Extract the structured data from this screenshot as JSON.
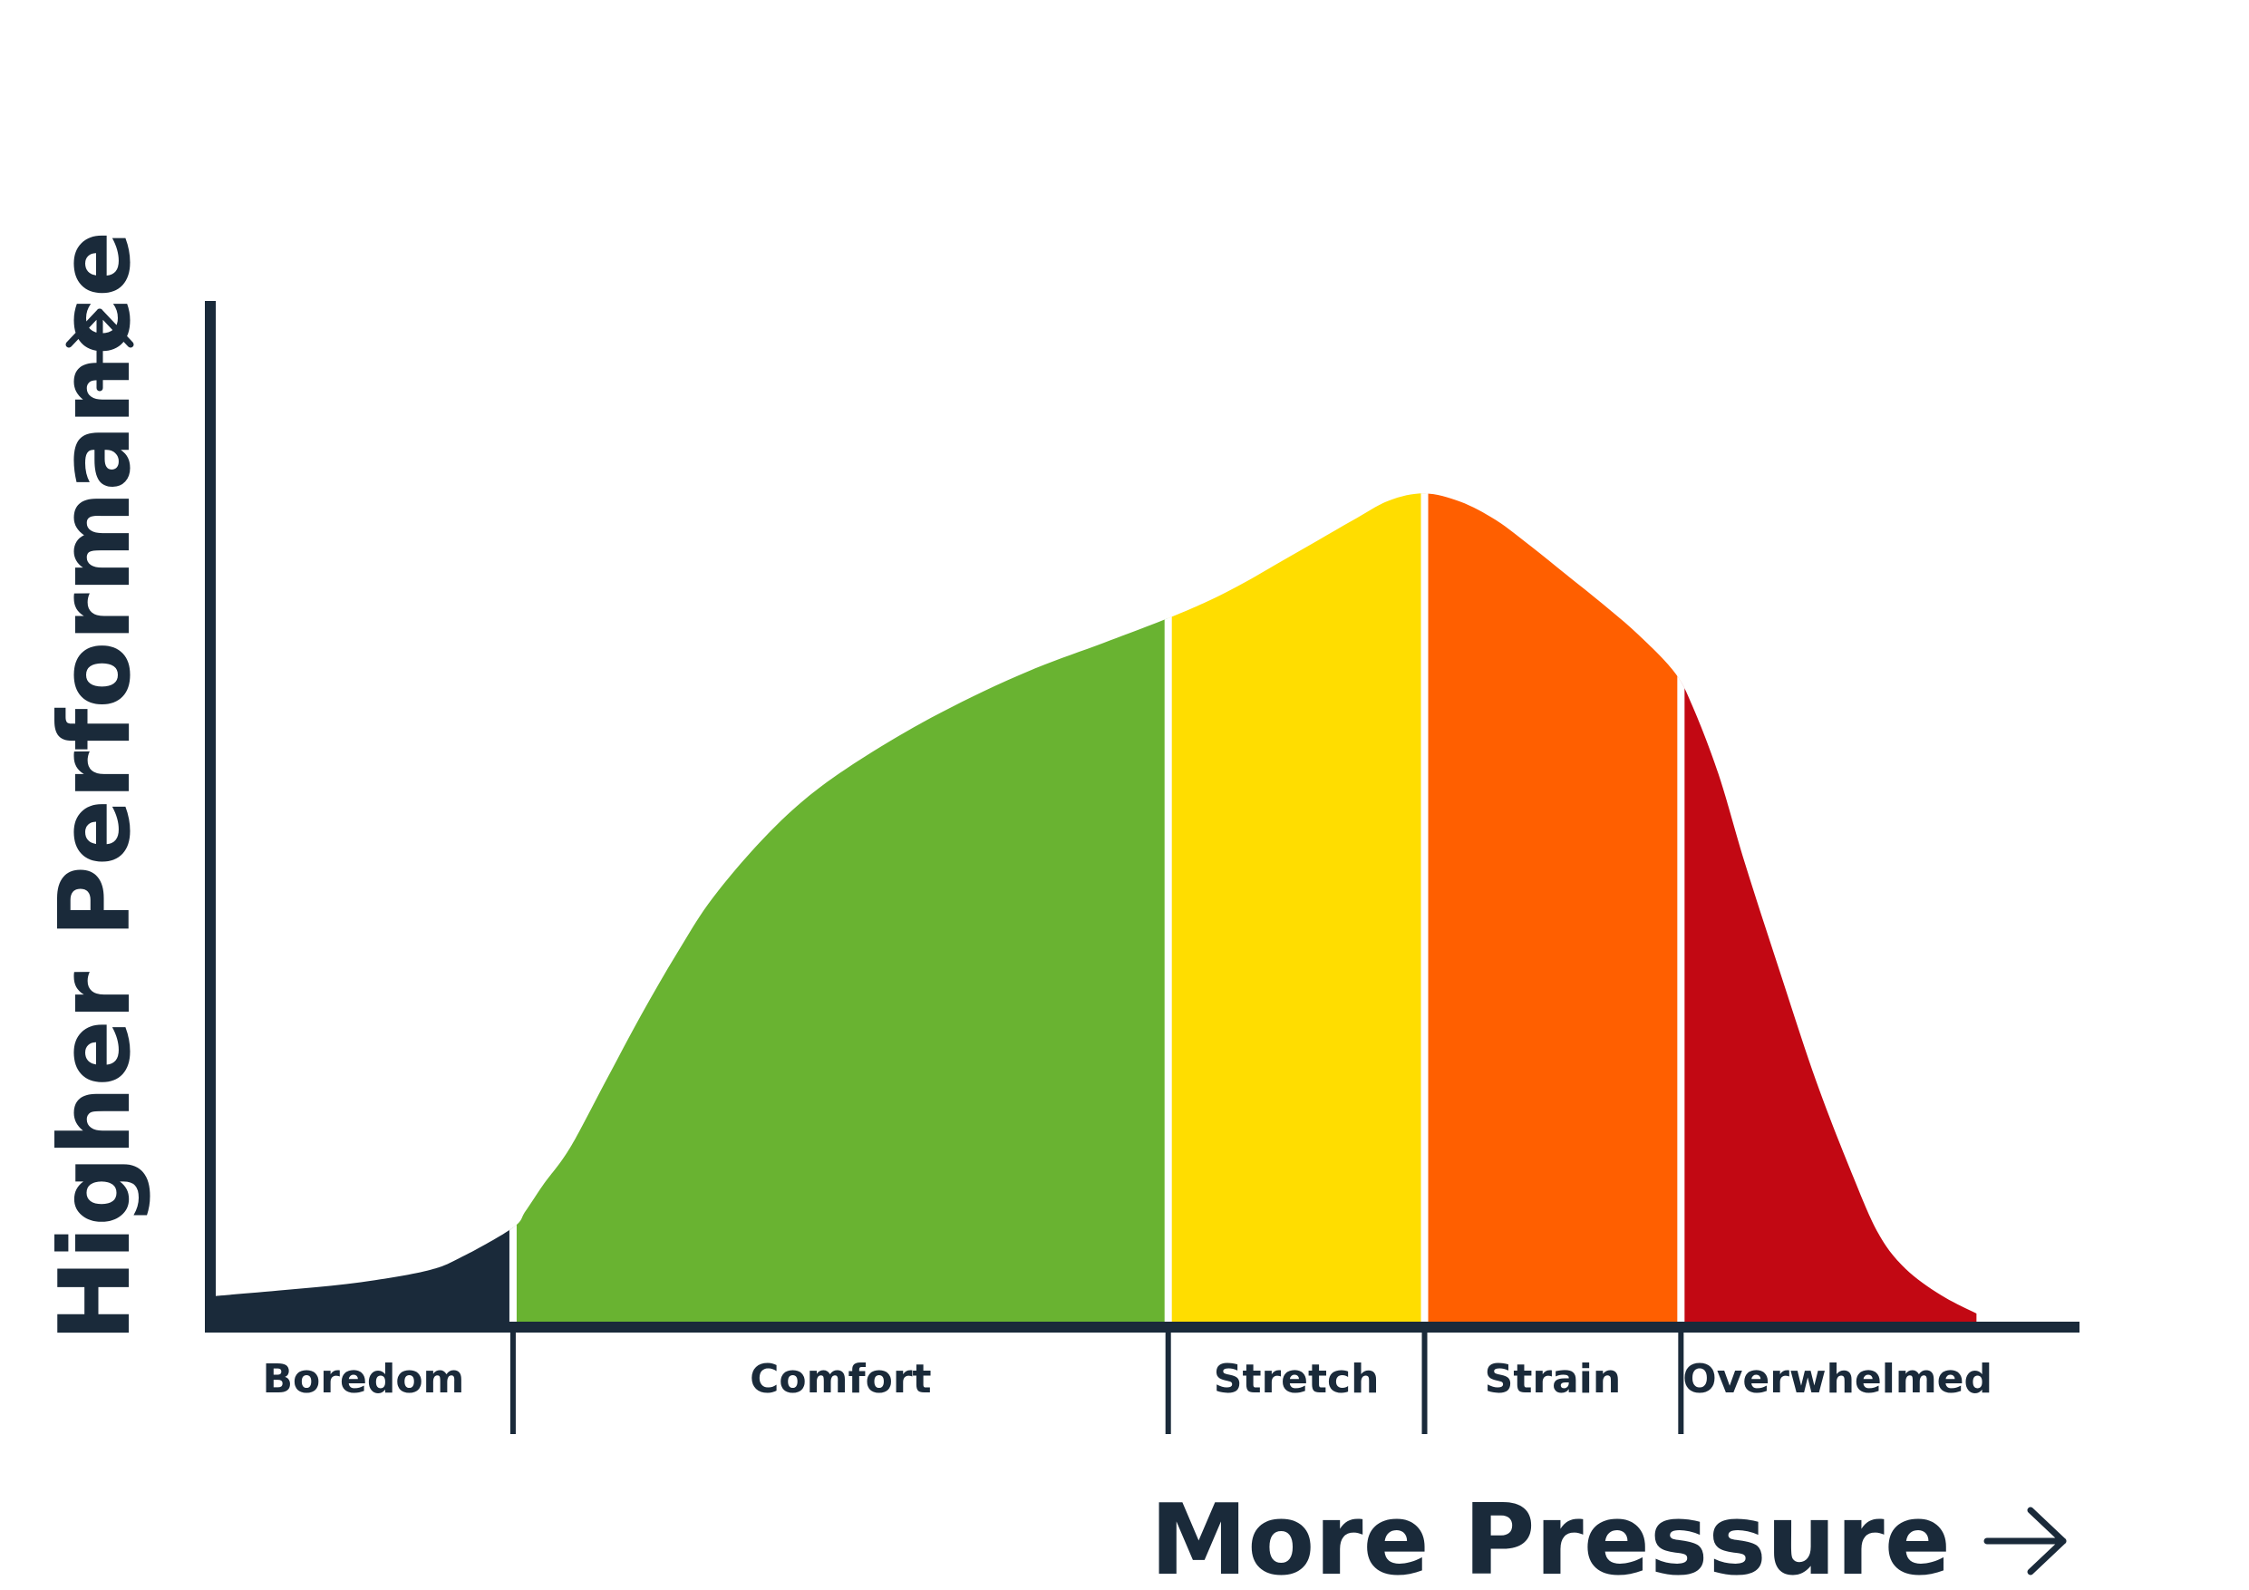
{
  "chart_data": {
    "type": "area",
    "xlabel": "More Pressure",
    "ylabel": "Higher Performance",
    "xlim": [
      0,
      100
    ],
    "ylim": [
      0,
      100
    ],
    "grid": false,
    "legend": "none",
    "zones": [
      {
        "name": "Boredom",
        "color": "#1a2a3a",
        "x_start": 0,
        "x_end": 16.8
      },
      {
        "name": "Comfort",
        "color": "#69b331",
        "x_start": 16.8,
        "x_end": 53.6
      },
      {
        "name": "Stretch",
        "color": "#ffdd00",
        "x_start": 53.6,
        "x_end": 68.0
      },
      {
        "name": "Strain",
        "color": "#ff5f00",
        "x_start": 68.0,
        "x_end": 82.4
      },
      {
        "name": "Overwhelmed",
        "color": "#c20813",
        "x_start": 82.4,
        "x_end": 100
      }
    ],
    "x": [
      0,
      4,
      8,
      12,
      14,
      16.8,
      17.5,
      18.5,
      20,
      22,
      24,
      26,
      28,
      31,
      34,
      38,
      42,
      46,
      50,
      53.6,
      56,
      58,
      60,
      62,
      64,
      66,
      68,
      70,
      72,
      74,
      76,
      78,
      80,
      82,
      83,
      84.5,
      86,
      88,
      90,
      92,
      93.5,
      95,
      97,
      99
    ],
    "y": [
      2.5,
      3.1,
      3.8,
      5.0,
      6.4,
      9.2,
      10.8,
      13.4,
      17.0,
      23.5,
      30.0,
      36.0,
      41.4,
      47.5,
      52.2,
      56.8,
      60.6,
      63.8,
      66.4,
      68.8,
      70.6,
      72.4,
      74.4,
      76.4,
      78.4,
      80.3,
      81.0,
      80.2,
      78.4,
      75.8,
      73.0,
      70.2,
      67.2,
      63.6,
      60.4,
      53.6,
      44.8,
      34.0,
      23.5,
      14.5,
      8.6,
      5.2,
      2.6,
      0.8
    ]
  }
}
